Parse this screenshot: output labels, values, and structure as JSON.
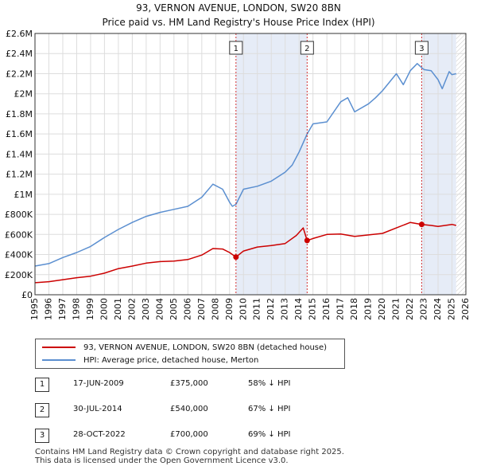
{
  "header": {
    "title": "93, VERNON AVENUE, LONDON, SW20 8BN",
    "subtitle": "Price paid vs. HM Land Registry's House Price Index (HPI)"
  },
  "chart_data": {
    "type": "line",
    "title": "93, VERNON AVENUE, LONDON, SW20 8BN",
    "subtitle": "Price paid vs. HM Land Registry's House Price Index (HPI)",
    "xlim": [
      1995,
      2026
    ],
    "ylim": [
      0,
      2600000
    ],
    "x_ticks": [
      1995,
      1996,
      1997,
      1998,
      1999,
      2000,
      2001,
      2002,
      2003,
      2004,
      2005,
      2006,
      2007,
      2008,
      2009,
      2010,
      2011,
      2012,
      2013,
      2014,
      2015,
      2016,
      2017,
      2018,
      2019,
      2020,
      2021,
      2022,
      2023,
      2024,
      2025,
      2026
    ],
    "y_ticks": [
      {
        "value": 0,
        "label": "£0"
      },
      {
        "value": 200000,
        "label": "£200K"
      },
      {
        "value": 400000,
        "label": "£400K"
      },
      {
        "value": 600000,
        "label": "£600K"
      },
      {
        "value": 800000,
        "label": "£800K"
      },
      {
        "value": 1000000,
        "label": "£1M"
      },
      {
        "value": 1200000,
        "label": "£1.2M"
      },
      {
        "value": 1400000,
        "label": "£1.4M"
      },
      {
        "value": 1600000,
        "label": "£1.6M"
      },
      {
        "value": 1800000,
        "label": "£1.8M"
      },
      {
        "value": 2000000,
        "label": "£2M"
      },
      {
        "value": 2200000,
        "label": "£2.2M"
      },
      {
        "value": 2400000,
        "label": "£2.4M"
      },
      {
        "value": 2600000,
        "label": "£2.6M"
      }
    ],
    "shaded_ranges": [
      [
        2009.46,
        2014.58
      ],
      [
        2022.82,
        2025.3
      ]
    ],
    "hatch_from": 2025.3,
    "series": [
      {
        "name": "93, VERNON AVENUE, LONDON, SW20 8BN (detached house)",
        "color": "#cc0000",
        "x": [
          1995,
          1996,
          1997,
          1998,
          1999,
          2000,
          2001,
          2002,
          2003,
          2004,
          2005,
          2006,
          2007,
          2007.8,
          2008.5,
          2009.0,
          2009.46,
          2010,
          2011,
          2012,
          2013,
          2013.8,
          2014.3,
          2014.58,
          2015,
          2016,
          2017,
          2018,
          2019,
          2020,
          2021,
          2022,
          2022.82,
          2023.5,
          2024,
          2024.5,
          2025,
          2025.3
        ],
        "values": [
          120000,
          130000,
          150000,
          170000,
          185000,
          215000,
          260000,
          285000,
          315000,
          330000,
          335000,
          350000,
          395000,
          460000,
          455000,
          420000,
          375000,
          435000,
          475000,
          490000,
          510000,
          590000,
          665000,
          540000,
          560000,
          600000,
          605000,
          580000,
          595000,
          610000,
          665000,
          720000,
          700000,
          690000,
          680000,
          690000,
          700000,
          690000
        ]
      },
      {
        "name": "HPI: Average price, detached house, Merton",
        "color": "#5b8fd0",
        "x": [
          1995,
          1996,
          1997,
          1998,
          1999,
          2000,
          2001,
          2002,
          2003,
          2004,
          2005,
          2006,
          2007,
          2007.8,
          2008.5,
          2009.0,
          2009.2,
          2009.46,
          2010,
          2011,
          2012,
          2013,
          2013.5,
          2014,
          2014.58,
          2015,
          2016,
          2017,
          2017.5,
          2018,
          2019,
          2019.5,
          2020,
          2021,
          2021.5,
          2022,
          2022.5,
          2022.82,
          2023,
          2023.5,
          2024,
          2024.3,
          2024.8,
          2025,
          2025.3
        ],
        "values": [
          285000,
          310000,
          370000,
          420000,
          480000,
          570000,
          650000,
          720000,
          780000,
          820000,
          850000,
          880000,
          970000,
          1100000,
          1050000,
          920000,
          880000,
          900000,
          1050000,
          1080000,
          1130000,
          1220000,
          1290000,
          1420000,
          1600000,
          1700000,
          1720000,
          1920000,
          1960000,
          1820000,
          1900000,
          1960000,
          2030000,
          2200000,
          2090000,
          2230000,
          2300000,
          2260000,
          2240000,
          2230000,
          2140000,
          2050000,
          2220000,
          2190000,
          2200000
        ]
      }
    ],
    "sales": [
      {
        "label": "1",
        "date": "17-JUN-2009",
        "x": 2009.46,
        "price_value": 375000,
        "price": "£375,000",
        "hpi": "58% ↓ HPI"
      },
      {
        "label": "2",
        "date": "30-JUL-2014",
        "x": 2014.58,
        "price_value": 540000,
        "price": "£540,000",
        "hpi": "67% ↓ HPI"
      },
      {
        "label": "3",
        "date": "28-OCT-2022",
        "x": 2022.82,
        "price_value": 700000,
        "price": "£700,000",
        "hpi": "69% ↓ HPI"
      }
    ]
  },
  "legend": {
    "items": [
      {
        "label": "93, VERNON AVENUE, LONDON, SW20 8BN (detached house)",
        "color": "#cc0000"
      },
      {
        "label": "HPI: Average price, detached house, Merton",
        "color": "#5b8fd0"
      }
    ]
  },
  "footer": {
    "line1": "Contains HM Land Registry data © Crown copyright and database right 2025.",
    "line2": "This data is licensed under the Open Government Licence v3.0."
  }
}
